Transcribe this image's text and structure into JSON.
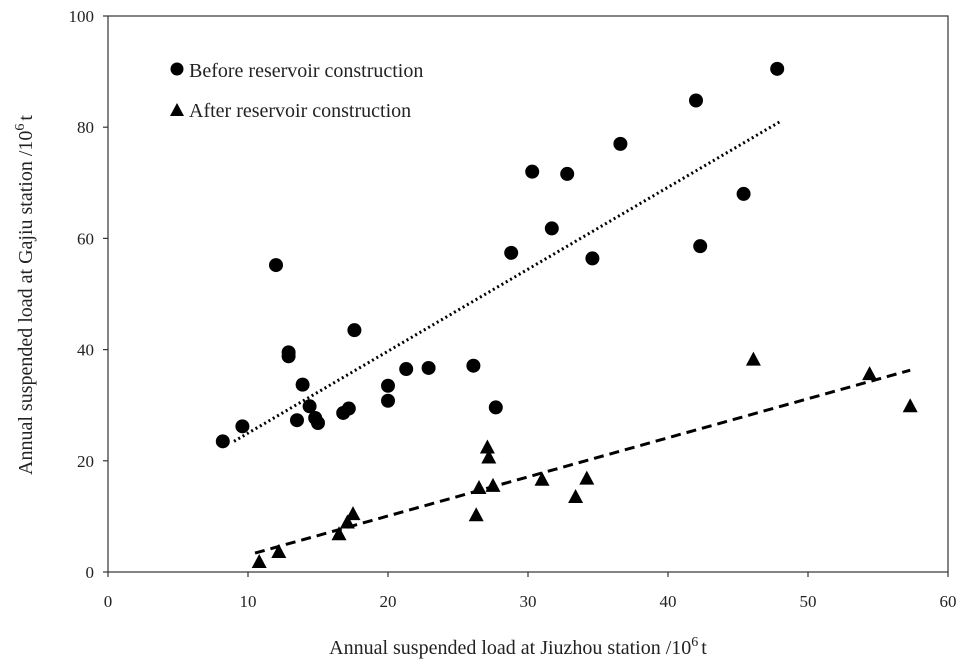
{
  "chart_data": {
    "type": "scatter",
    "xlabel_main": "Annual suspended load at Jiuzhou station /10",
    "xlabel_sup": "6",
    "xlabel_tail": "t",
    "ylabel_main": "Annual suspended load at Gajiu station /10",
    "ylabel_sup": "6",
    "ylabel_tail": "t",
    "xlim": [
      0,
      60
    ],
    "ylim": [
      0,
      100
    ],
    "xticks": [
      "0",
      "10",
      "20",
      "30",
      "40",
      "50",
      "60"
    ],
    "yticks": [
      "0",
      "20",
      "40",
      "60",
      "80",
      "100"
    ],
    "grid": false,
    "legend": "top-left",
    "series": [
      {
        "name": "Before reservoir construction",
        "marker": "circle",
        "color": "#000000",
        "points": [
          [
            8.2,
            23.5
          ],
          [
            9.6,
            26.2
          ],
          [
            12.0,
            55.2
          ],
          [
            12.9,
            38.8
          ],
          [
            12.9,
            39.5
          ],
          [
            13.5,
            27.3
          ],
          [
            13.9,
            33.7
          ],
          [
            14.4,
            29.8
          ],
          [
            14.8,
            27.7
          ],
          [
            15.0,
            26.8
          ],
          [
            16.8,
            28.6
          ],
          [
            17.2,
            29.4
          ],
          [
            17.6,
            43.5
          ],
          [
            20.0,
            33.5
          ],
          [
            20.0,
            30.8
          ],
          [
            21.3,
            36.5
          ],
          [
            22.9,
            36.7
          ],
          [
            26.1,
            37.1
          ],
          [
            27.7,
            29.6
          ],
          [
            28.8,
            57.4
          ],
          [
            30.3,
            72.0
          ],
          [
            31.7,
            61.8
          ],
          [
            32.8,
            71.6
          ],
          [
            34.6,
            56.4
          ],
          [
            36.6,
            77.0
          ],
          [
            42.0,
            84.8
          ],
          [
            42.3,
            58.6
          ],
          [
            45.4,
            68.0
          ],
          [
            47.8,
            90.5
          ]
        ]
      },
      {
        "name": "After reservoir construction",
        "marker": "triangle",
        "color": "#000000",
        "points": [
          [
            10.8,
            1.8
          ],
          [
            12.2,
            3.6
          ],
          [
            16.5,
            6.8
          ],
          [
            17.1,
            8.9
          ],
          [
            17.5,
            10.4
          ],
          [
            26.3,
            10.2
          ],
          [
            26.5,
            15.1
          ],
          [
            27.1,
            22.4
          ],
          [
            27.2,
            20.6
          ],
          [
            27.5,
            15.5
          ],
          [
            31.0,
            16.6
          ],
          [
            33.4,
            13.5
          ],
          [
            34.2,
            16.8
          ],
          [
            46.1,
            38.2
          ],
          [
            54.4,
            35.6
          ],
          [
            57.3,
            29.8
          ]
        ]
      }
    ],
    "trendlines": [
      {
        "series": "Before reservoir construction",
        "style": "dotted",
        "x": [
          9.0,
          48.0
        ],
        "y": [
          23.5,
          81.0
        ]
      },
      {
        "series": "After reservoir construction",
        "style": "dashed",
        "x": [
          10.5,
          57.3
        ],
        "y": [
          3.4,
          36.3
        ]
      }
    ]
  }
}
